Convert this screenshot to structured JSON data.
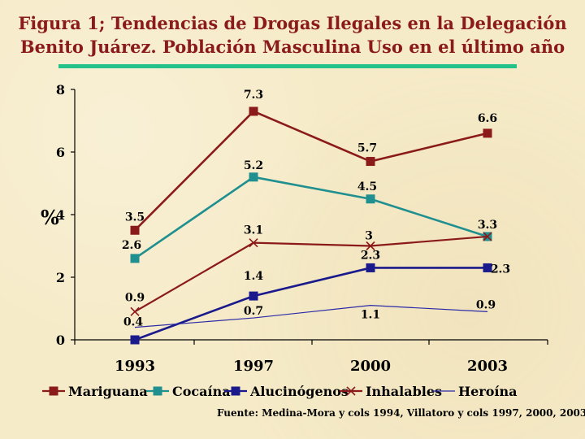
{
  "title_line1": "Figura 1; Tendencias de Drogas Ilegales en  la Delegación",
  "title_line2": "Benito Juárez. Población Masculina Uso en el último año",
  "source": "Fuente: Medina-Mora y cols 1994, Villatoro y cols 1997, 2000, 2003",
  "colors": {
    "background": "#f6ebc8",
    "title": "#8b1a1a",
    "title_rule": "#22c28a"
  },
  "chart_data": {
    "type": "line",
    "title": "Figura 1; Tendencias de Drogas Ilegales en  la Delegación Benito Juárez. Población Masculina Uso en el último año",
    "xlabel": "",
    "ylabel": "%",
    "categories": [
      "1993",
      "1997",
      "2000",
      "2003"
    ],
    "ylim": [
      0,
      8
    ],
    "yticks": [
      "0",
      "2",
      "4",
      "6",
      "8"
    ],
    "grid": false,
    "legend_position": "bottom",
    "series": [
      {
        "name": "Mariguana",
        "values": [
          3.5,
          7.3,
          5.7,
          6.6
        ],
        "labels": [
          "3.5",
          "7.3",
          "5.7",
          "6.6"
        ],
        "color": "#8b1a1a",
        "marker": "square"
      },
      {
        "name": "Cocaína",
        "values": [
          2.6,
          5.2,
          4.5,
          3.3
        ],
        "labels": [
          "2.6",
          "5.2",
          "4.5",
          "3.3"
        ],
        "color": "#1f8f8f",
        "marker": "square"
      },
      {
        "name": "Alucinógenos",
        "values": [
          0.0,
          1.4,
          2.3,
          2.3
        ],
        "labels": [
          "",
          "1.4",
          "2.3",
          "2.3"
        ],
        "color": "#1a1a8c",
        "marker": "square"
      },
      {
        "name": "Inhalables",
        "values": [
          0.9,
          3.1,
          3.0,
          3.3
        ],
        "labels": [
          "0.9",
          "3.1",
          "3",
          ""
        ],
        "color": "#8b1a1a",
        "marker": "x"
      },
      {
        "name": "Heroína",
        "values": [
          0.4,
          0.7,
          1.1,
          0.9
        ],
        "labels": [
          "0.4",
          "0.7",
          "1.1",
          "0.9"
        ],
        "color": "#2a2aa8",
        "marker": "line"
      }
    ]
  }
}
